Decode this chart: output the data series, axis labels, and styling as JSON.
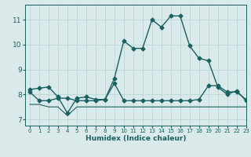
{
  "background_color": "#daeaea",
  "grid_color": "#b8d8d8",
  "line_color": "#1a6060",
  "xlabel": "Humidex (Indice chaleur)",
  "xlim": [
    -0.5,
    23
  ],
  "ylim": [
    6.75,
    11.6
  ],
  "yticks": [
    7,
    8,
    9,
    10,
    11
  ],
  "xticks": [
    0,
    1,
    2,
    3,
    4,
    5,
    6,
    7,
    8,
    9,
    10,
    11,
    12,
    13,
    14,
    15,
    16,
    17,
    18,
    19,
    20,
    21,
    22,
    23
  ],
  "series": [
    {
      "x": [
        0,
        1,
        2,
        3,
        4,
        5,
        6,
        7,
        8,
        9,
        10,
        11,
        12,
        13,
        14,
        15,
        16,
        17,
        18,
        19,
        20,
        21,
        22,
        23
      ],
      "y": [
        8.2,
        8.25,
        8.3,
        7.9,
        7.25,
        7.85,
        7.9,
        7.8,
        7.8,
        8.65,
        10.15,
        9.85,
        9.85,
        11.0,
        10.7,
        11.15,
        11.15,
        9.95,
        9.45,
        9.35,
        8.3,
        8.0,
        8.15,
        7.75
      ],
      "marker": "D",
      "markersize": 2.5,
      "linewidth": 1.0
    },
    {
      "x": [
        0,
        1,
        2,
        3,
        4,
        5,
        6,
        7,
        8,
        9,
        10,
        11,
        12,
        13,
        14,
        15,
        16,
        17,
        18,
        19,
        20,
        21,
        22,
        23
      ],
      "y": [
        8.1,
        7.75,
        7.75,
        7.85,
        7.85,
        7.75,
        7.75,
        7.75,
        7.8,
        8.45,
        7.75,
        7.75,
        7.75,
        7.75,
        7.75,
        7.75,
        7.75,
        7.75,
        7.8,
        8.35,
        8.35,
        8.1,
        8.1,
        7.8
      ],
      "marker": "D",
      "markersize": 2.5,
      "linewidth": 1.0
    },
    {
      "x": [
        0,
        1,
        2,
        3,
        4,
        5,
        6,
        7,
        8,
        9,
        10,
        11,
        12,
        13,
        14,
        15,
        16,
        17,
        18,
        19,
        20,
        21,
        22,
        23
      ],
      "y": [
        7.6,
        7.6,
        7.5,
        7.5,
        7.15,
        7.5,
        7.5,
        7.5,
        7.5,
        7.5,
        7.5,
        7.5,
        7.5,
        7.5,
        7.5,
        7.5,
        7.5,
        7.5,
        7.5,
        7.5,
        7.5,
        7.5,
        7.5,
        7.5
      ],
      "marker": null,
      "markersize": 0,
      "linewidth": 0.8
    }
  ]
}
